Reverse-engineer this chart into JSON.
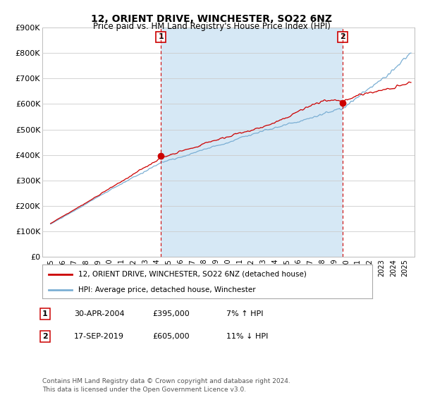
{
  "title": "12, ORIENT DRIVE, WINCHESTER, SO22 6NZ",
  "subtitle": "Price paid vs. HM Land Registry's House Price Index (HPI)",
  "ylim": [
    0,
    900000
  ],
  "yticks": [
    0,
    100000,
    200000,
    300000,
    400000,
    500000,
    600000,
    700000,
    800000,
    900000
  ],
  "ytick_labels": [
    "£0",
    "£100K",
    "£200K",
    "£300K",
    "£400K",
    "£500K",
    "£600K",
    "£700K",
    "£800K",
    "£900K"
  ],
  "line1_color": "#cc0000",
  "line2_color": "#7bafd4",
  "fill_color": "#d6e8f5",
  "purchase1_year": 2004.33,
  "purchase1_price": 395000,
  "purchase2_year": 2019.71,
  "purchase2_price": 605000,
  "legend1": "12, ORIENT DRIVE, WINCHESTER, SO22 6NZ (detached house)",
  "legend2": "HPI: Average price, detached house, Winchester",
  "annotation1_label": "1",
  "annotation1_date": "30-APR-2004",
  "annotation1_price": "£395,000",
  "annotation1_hpi": "7% ↑ HPI",
  "annotation2_label": "2",
  "annotation2_date": "17-SEP-2019",
  "annotation2_price": "£605,000",
  "annotation2_hpi": "11% ↓ HPI",
  "footer": "Contains HM Land Registry data © Crown copyright and database right 2024.\nThis data is licensed under the Open Government Licence v3.0.",
  "background_color": "#ffffff",
  "grid_color": "#cccccc"
}
